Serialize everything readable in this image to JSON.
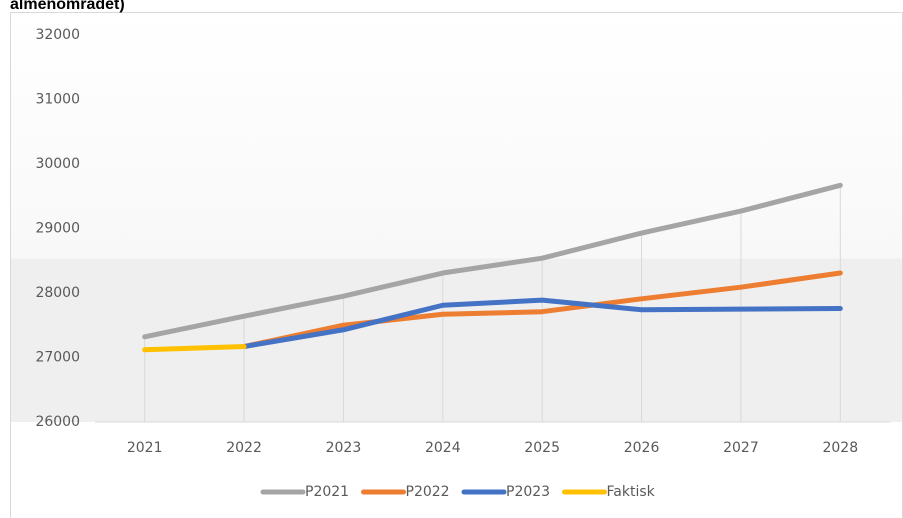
{
  "chart_data": {
    "type": "line",
    "title": "almenområdet)",
    "categories": [
      "2021",
      "2022",
      "2023",
      "2024",
      "2025",
      "2026",
      "2027",
      "2028"
    ],
    "series": [
      {
        "name": "P2021",
        "color": "#a5a5a5",
        "values": [
          27320,
          27640,
          27950,
          28310,
          28540,
          28930,
          29270,
          29670
        ]
      },
      {
        "name": "P2022",
        "color": "#ed7d31",
        "values": [
          null,
          27170,
          27500,
          27670,
          27710,
          27910,
          28090,
          28310
        ]
      },
      {
        "name": "P2023",
        "color": "#4472c4",
        "values": [
          null,
          27170,
          27430,
          27810,
          27890,
          27740,
          27750,
          27760
        ]
      },
      {
        "name": "Faktisk",
        "color": "#ffc000",
        "values": [
          27120,
          27170,
          null,
          null,
          null,
          null,
          null,
          null
        ]
      }
    ],
    "ylim": [
      26000,
      32000
    ],
    "yticks": [
      26000,
      27000,
      28000,
      29000,
      30000,
      31000,
      32000
    ],
    "droplines": true,
    "legend": "bottom"
  }
}
